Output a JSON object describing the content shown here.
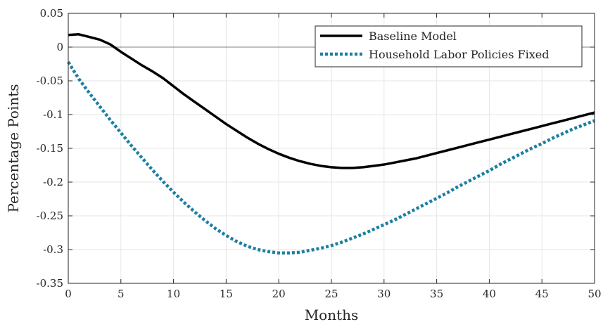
{
  "chart_data": {
    "type": "line",
    "title": "",
    "xlabel": "Months",
    "ylabel": "Percentage Points",
    "xlim": [
      0,
      50
    ],
    "ylim": [
      -0.35,
      0.05
    ],
    "xticks": [
      0,
      5,
      10,
      15,
      20,
      25,
      30,
      35,
      40,
      45,
      50
    ],
    "yticks": [
      0.05,
      0,
      -0.05,
      -0.1,
      -0.15,
      -0.2,
      -0.25,
      -0.3,
      -0.35
    ],
    "xtick_labels": [
      "0",
      "5",
      "10",
      "15",
      "20",
      "25",
      "30",
      "35",
      "40",
      "45",
      "50"
    ],
    "ytick_labels": [
      "0.05",
      "0",
      "-0.05",
      "-0.1",
      "-0.15",
      "-0.2",
      "-0.25",
      "-0.3",
      "-0.35"
    ],
    "grid": true,
    "zero_line": true,
    "legend_position": "top-right",
    "series": [
      {
        "name": "Baseline Model",
        "color": "#000000",
        "style": "solid",
        "x": [
          0,
          1,
          2,
          3,
          4,
          5,
          6,
          7,
          8,
          9,
          10,
          11,
          12,
          13,
          14,
          15,
          16,
          17,
          18,
          19,
          20,
          21,
          22,
          23,
          24,
          25,
          26,
          27,
          28,
          29,
          30,
          31,
          32,
          33,
          34,
          35,
          36,
          37,
          38,
          39,
          40,
          41,
          42,
          43,
          44,
          45,
          46,
          47,
          48,
          49,
          50
        ],
        "values": [
          0.018,
          0.019,
          0.015,
          0.011,
          0.004,
          -0.007,
          -0.017,
          -0.027,
          -0.036,
          -0.046,
          -0.058,
          -0.07,
          -0.081,
          -0.092,
          -0.103,
          -0.114,
          -0.124,
          -0.134,
          -0.143,
          -0.151,
          -0.158,
          -0.164,
          -0.169,
          -0.173,
          -0.176,
          -0.178,
          -0.179,
          -0.179,
          -0.178,
          -0.176,
          -0.174,
          -0.171,
          -0.168,
          -0.165,
          -0.161,
          -0.157,
          -0.153,
          -0.149,
          -0.145,
          -0.141,
          -0.137,
          -0.133,
          -0.129,
          -0.125,
          -0.121,
          -0.117,
          -0.113,
          -0.109,
          -0.105,
          -0.101,
          -0.097
        ]
      },
      {
        "name": "Household Labor Policies Fixed",
        "color": "#1b7fa1",
        "style": "dotted",
        "x": [
          0,
          1,
          2,
          3,
          4,
          5,
          6,
          7,
          8,
          9,
          10,
          11,
          12,
          13,
          14,
          15,
          16,
          17,
          18,
          19,
          20,
          21,
          22,
          23,
          24,
          25,
          26,
          27,
          28,
          29,
          30,
          31,
          32,
          33,
          34,
          35,
          36,
          37,
          38,
          39,
          40,
          41,
          42,
          43,
          44,
          45,
          46,
          47,
          48,
          49,
          50
        ],
        "values": [
          -0.022,
          -0.047,
          -0.068,
          -0.088,
          -0.108,
          -0.127,
          -0.146,
          -0.164,
          -0.182,
          -0.199,
          -0.215,
          -0.23,
          -0.244,
          -0.257,
          -0.269,
          -0.279,
          -0.288,
          -0.295,
          -0.3,
          -0.303,
          -0.305,
          -0.305,
          -0.304,
          -0.301,
          -0.298,
          -0.294,
          -0.289,
          -0.283,
          -0.277,
          -0.27,
          -0.263,
          -0.256,
          -0.248,
          -0.24,
          -0.232,
          -0.224,
          -0.216,
          -0.207,
          -0.199,
          -0.191,
          -0.183,
          -0.174,
          -0.166,
          -0.158,
          -0.15,
          -0.143,
          -0.135,
          -0.128,
          -0.121,
          -0.115,
          -0.109
        ]
      }
    ]
  }
}
